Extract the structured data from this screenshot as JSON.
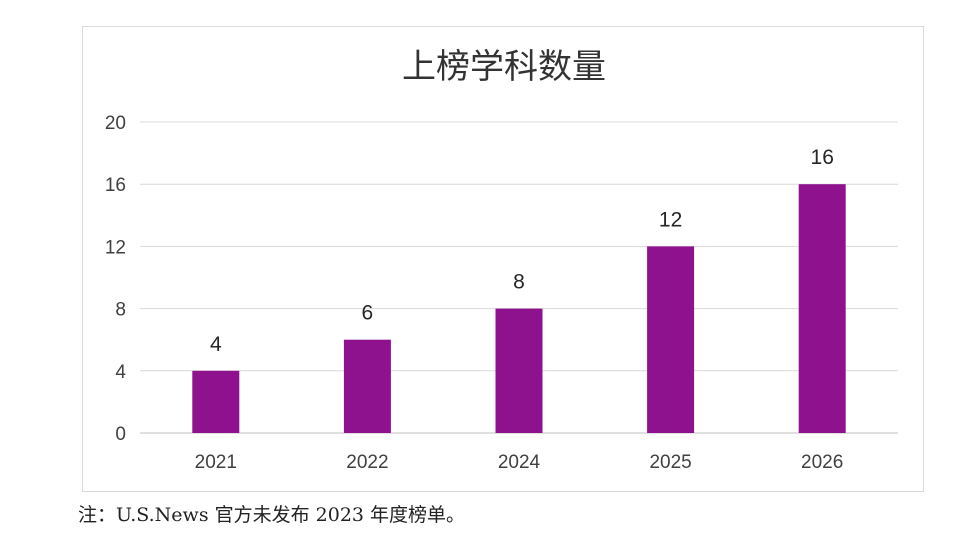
{
  "chart_data": {
    "type": "bar",
    "title": "上榜学科数量",
    "categories": [
      "2021",
      "2022",
      "2024",
      "2025",
      "2026"
    ],
    "values": [
      4,
      6,
      8,
      12,
      16
    ],
    "xlabel": "",
    "ylabel": "",
    "ylim": [
      0,
      20
    ],
    "yticks": [
      "0",
      "4",
      "8",
      "12",
      "16",
      "20"
    ],
    "grid": true,
    "legend": "none",
    "bar_color": "#8E128E"
  },
  "footnote": "注：U.S.News 官方未发布 2023 年度榜单。"
}
